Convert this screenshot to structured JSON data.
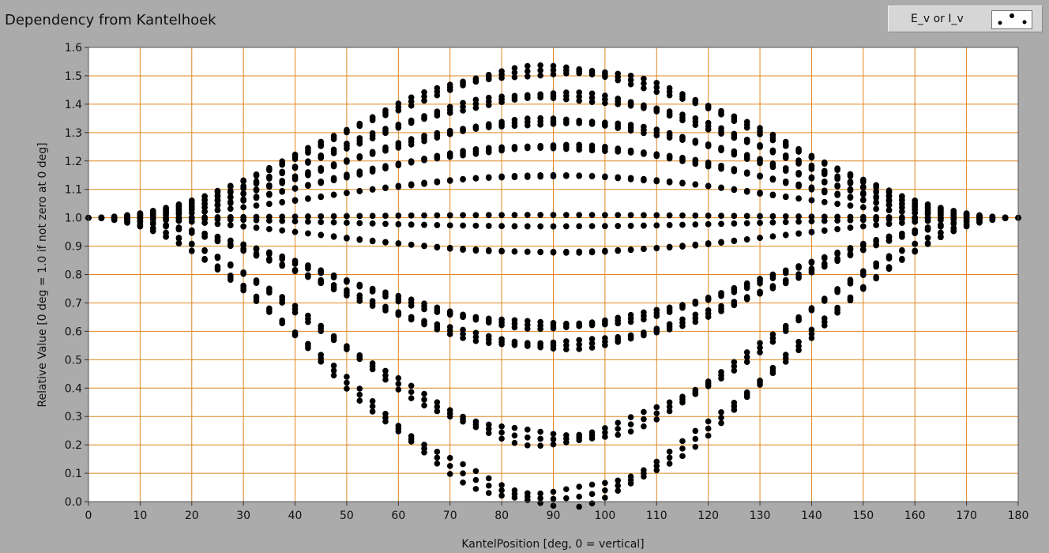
{
  "title": "Dependency from Kantelhoek",
  "legend": {
    "label": "E_v or I_v"
  },
  "colors": {
    "grid": "#e0861f",
    "plot_bg": "#ffffff",
    "marker": "#000000",
    "frame": "#ababab"
  },
  "chart_data": {
    "type": "scatter",
    "title": "Dependency from Kantelhoek",
    "xlabel": "KantelPosition [deg, 0 = vertical]",
    "ylabel": "Relative Value [0 deg = 1.0 if not zero at 0 deg]",
    "xlim": [
      0,
      180
    ],
    "ylim": [
      0,
      1.6
    ],
    "xticks": [
      0,
      10,
      20,
      30,
      40,
      50,
      60,
      70,
      80,
      90,
      100,
      110,
      120,
      130,
      140,
      150,
      160,
      170,
      180
    ],
    "yticks": [
      "0.0",
      "0.1",
      "0.2",
      "0.3",
      "0.4",
      "0.5",
      "0.6",
      "0.7",
      "0.8",
      "0.9",
      "1.0",
      "1.1",
      "1.2",
      "1.3",
      "1.4",
      "1.5",
      "1.6"
    ],
    "grid": true,
    "legend_position": "top-right",
    "series": [
      {
        "name": "E_v or I_v",
        "marker": "filled-circle",
        "x": [
          0,
          2.5,
          5,
          7.5,
          10,
          12.5,
          15,
          17.5,
          20,
          22.5,
          25,
          27.5,
          30,
          32.5,
          35,
          37.5,
          40,
          42.5,
          45,
          47.5,
          50,
          52.5,
          55,
          57.5,
          60,
          62.5,
          65,
          67.5,
          70,
          72.5,
          75,
          77.5,
          80,
          82.5,
          85,
          87.5,
          90,
          92.5,
          95,
          97.5,
          100,
          102.5,
          105,
          107.5,
          110,
          112.5,
          115,
          117.5,
          120,
          122.5,
          125,
          127.5,
          130,
          132.5,
          135,
          137.5,
          140,
          142.5,
          145,
          147.5,
          150,
          152.5,
          155,
          157.5,
          160,
          162.5,
          165,
          167.5,
          170,
          172.5,
          175,
          177.5,
          180
        ],
        "curves_at_90": [
          0.01,
          0.22,
          0.55,
          0.62,
          0.88,
          0.97,
          1.01,
          1.15,
          1.25,
          1.34,
          1.43,
          1.52
        ]
      }
    ]
  }
}
